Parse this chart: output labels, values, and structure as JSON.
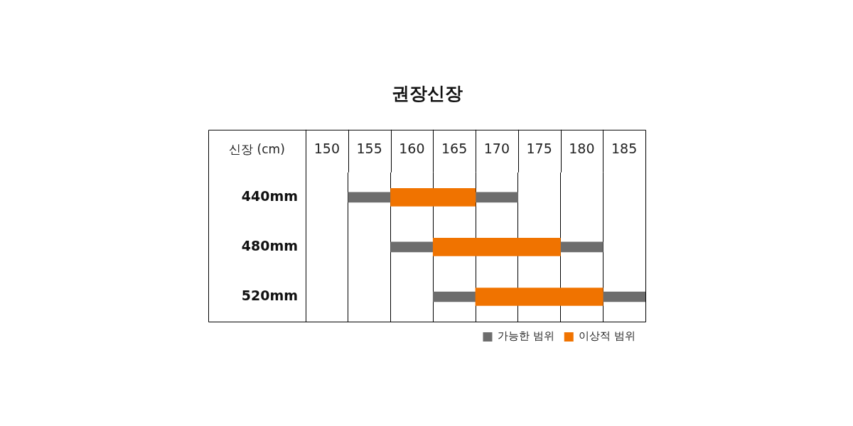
{
  "chart_data": {
    "type": "bar",
    "orientation": "horizontal",
    "title": "권장신장",
    "xlabel": "신장 (cm)",
    "categories": [
      "440mm",
      "480mm",
      "520mm"
    ],
    "series": [
      {
        "name": "가능한 범위",
        "color": "#6d6d6d",
        "base": [
          152.5,
          157.5,
          162.5
        ],
        "values": [
          20,
          25,
          25
        ]
      },
      {
        "name": "이상적 범위",
        "color": "#f07300",
        "base": [
          157.5,
          162.5,
          167.5
        ],
        "values": [
          10,
          15,
          15
        ]
      }
    ],
    "xlim": [
      147.5,
      187.5
    ],
    "xticks": [
      150,
      155,
      160,
      165,
      170,
      175,
      180,
      185
    ],
    "grid": "x",
    "legend": "bottom right"
  }
}
